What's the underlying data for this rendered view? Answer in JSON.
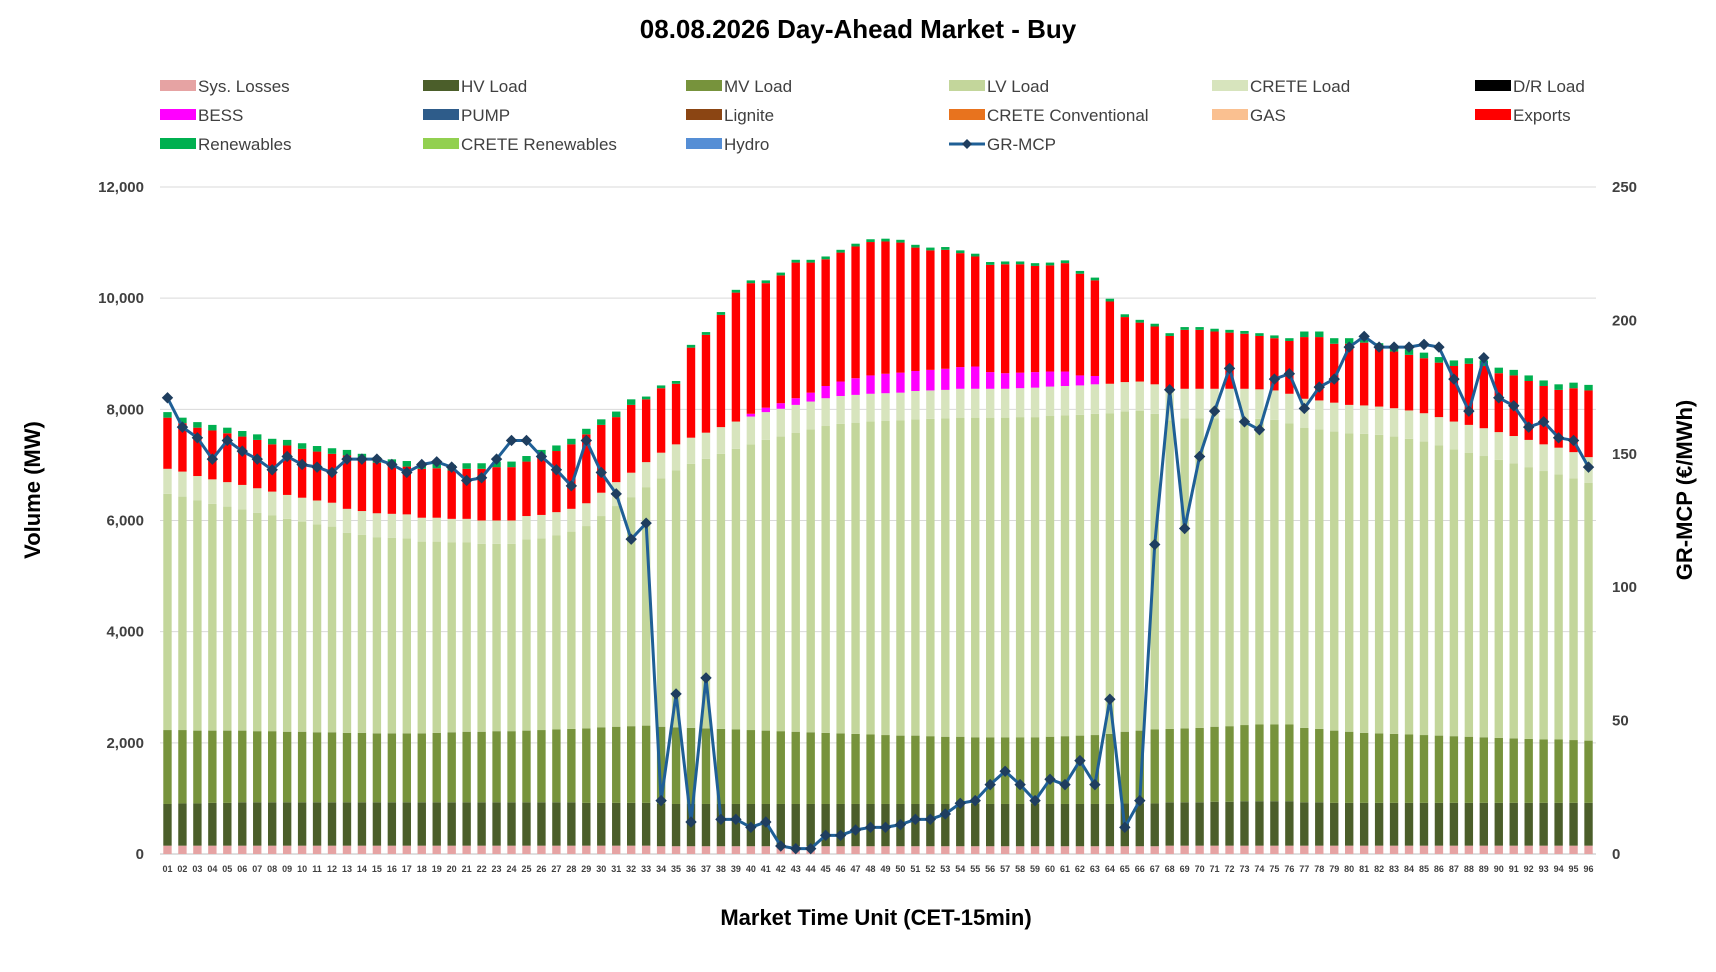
{
  "chart_data": {
    "type": "bar",
    "title": "08.08.2026  Day-Ahead Market - Buy",
    "xlabel": "Market Time Unit (CET-15min)",
    "ylabel": "Volume (MW)",
    "y2label": "GR-MCP (€/MWh)",
    "ylim": [
      0,
      12000
    ],
    "y2lim": [
      0,
      250
    ],
    "yticks": [
      "0",
      "2,000",
      "4,000",
      "6,000",
      "8,000",
      "10,000",
      "12,000"
    ],
    "y2ticks": [
      "0",
      "50",
      "100",
      "150",
      "200",
      "250"
    ],
    "grid": true,
    "legend_position": "top",
    "categories": [
      "01",
      "02",
      "03",
      "04",
      "05",
      "06",
      "07",
      "08",
      "09",
      "10",
      "11",
      "12",
      "13",
      "14",
      "15",
      "16",
      "17",
      "18",
      "19",
      "20",
      "21",
      "22",
      "23",
      "24",
      "25",
      "26",
      "27",
      "28",
      "29",
      "30",
      "31",
      "32",
      "33",
      "34",
      "35",
      "36",
      "37",
      "38",
      "39",
      "40",
      "41",
      "42",
      "43",
      "44",
      "45",
      "46",
      "47",
      "48",
      "49",
      "50",
      "51",
      "52",
      "53",
      "54",
      "55",
      "56",
      "57",
      "58",
      "59",
      "60",
      "61",
      "62",
      "63",
      "64",
      "65",
      "66",
      "67",
      "68",
      "69",
      "70",
      "71",
      "72",
      "73",
      "74",
      "75",
      "76",
      "77",
      "78",
      "79",
      "80",
      "81",
      "82",
      "83",
      "84",
      "85",
      "86",
      "87",
      "88",
      "89",
      "90",
      "91",
      "92",
      "93",
      "94",
      "95",
      "96"
    ],
    "legend": [
      {
        "name": "Sys. Losses",
        "color": "#e6a3a3",
        "kind": "box"
      },
      {
        "name": "HV Load",
        "color": "#4b5e2a",
        "kind": "box"
      },
      {
        "name": "MV Load",
        "color": "#77933c",
        "kind": "box"
      },
      {
        "name": "LV Load",
        "color": "#c3d69b",
        "kind": "box"
      },
      {
        "name": "CRETE Load",
        "color": "#d7e4bd",
        "kind": "box"
      },
      {
        "name": "D/R Load",
        "color": "#000000",
        "kind": "box"
      },
      {
        "name": "BESS",
        "color": "#ff00ff",
        "kind": "box"
      },
      {
        "name": "PUMP",
        "color": "#2e5c8a",
        "kind": "box"
      },
      {
        "name": "Lignite",
        "color": "#8b4513",
        "kind": "box"
      },
      {
        "name": "CRETE Conventional",
        "color": "#e8731e",
        "kind": "box"
      },
      {
        "name": "GAS",
        "color": "#fac090",
        "kind": "box"
      },
      {
        "name": "Exports",
        "color": "#ff0000",
        "kind": "box"
      },
      {
        "name": "Renewables",
        "color": "#00b050",
        "kind": "box"
      },
      {
        "name": "CRETE Renewables",
        "color": "#92d050",
        "kind": "box"
      },
      {
        "name": "Hydro",
        "color": "#558ed5",
        "kind": "box"
      },
      {
        "name": "GR-MCP",
        "color": "#1f5f96",
        "kind": "line"
      }
    ],
    "series": [
      {
        "name": "Sys. Losses",
        "color": "#e6a3a3",
        "values": [
          150,
          150,
          150,
          150,
          150,
          150,
          150,
          150,
          150,
          150,
          150,
          150,
          150,
          150,
          150,
          150,
          150,
          150,
          150,
          150,
          150,
          150,
          150,
          150,
          150,
          150,
          150,
          150,
          150,
          150,
          150,
          150,
          150,
          140,
          140,
          140,
          140,
          140,
          140,
          140,
          140,
          140,
          140,
          140,
          140,
          140,
          140,
          140,
          140,
          140,
          140,
          140,
          140,
          140,
          140,
          140,
          140,
          140,
          140,
          140,
          140,
          140,
          140,
          140,
          140,
          140,
          140,
          150,
          150,
          150,
          150,
          150,
          150,
          150,
          150,
          150,
          150,
          150,
          150,
          150,
          150,
          150,
          150,
          150,
          150,
          150,
          150,
          150,
          150,
          150,
          150,
          150,
          150,
          150,
          150,
          150
        ]
      },
      {
        "name": "HV Load",
        "color": "#4b5e2a",
        "values": [
          750,
          760,
          760,
          770,
          770,
          780,
          780,
          780,
          780,
          780,
          780,
          780,
          780,
          780,
          780,
          780,
          780,
          780,
          780,
          780,
          780,
          780,
          780,
          780,
          780,
          780,
          780,
          780,
          770,
          770,
          770,
          770,
          770,
          760,
          760,
          760,
          760,
          760,
          760,
          760,
          760,
          760,
          760,
          760,
          760,
          760,
          760,
          760,
          760,
          760,
          760,
          760,
          760,
          760,
          760,
          760,
          760,
          760,
          760,
          760,
          760,
          760,
          760,
          760,
          770,
          770,
          770,
          780,
          780,
          780,
          790,
          790,
          800,
          800,
          800,
          800,
          780,
          780,
          770,
          770,
          770,
          770,
          770,
          770,
          770,
          770,
          770,
          770,
          770,
          770,
          770,
          770,
          770,
          770,
          770,
          770
        ]
      },
      {
        "name": "MV Load",
        "color": "#77933c",
        "values": [
          1330,
          1320,
          1310,
          1300,
          1300,
          1290,
          1280,
          1280,
          1270,
          1270,
          1260,
          1260,
          1250,
          1250,
          1240,
          1240,
          1240,
          1240,
          1250,
          1260,
          1270,
          1270,
          1280,
          1280,
          1290,
          1300,
          1310,
          1320,
          1340,
          1360,
          1370,
          1380,
          1390,
          1390,
          1380,
          1370,
          1360,
          1350,
          1340,
          1330,
          1320,
          1310,
          1300,
          1290,
          1280,
          1270,
          1260,
          1250,
          1240,
          1230,
          1230,
          1220,
          1210,
          1210,
          1200,
          1200,
          1200,
          1200,
          1200,
          1210,
          1220,
          1230,
          1240,
          1260,
          1290,
          1310,
          1330,
          1320,
          1330,
          1340,
          1350,
          1360,
          1370,
          1380,
          1380,
          1380,
          1340,
          1320,
          1300,
          1280,
          1260,
          1250,
          1240,
          1230,
          1220,
          1210,
          1200,
          1190,
          1180,
          1170,
          1160,
          1150,
          1140,
          1140,
          1130,
          1120
        ]
      },
      {
        "name": "LV Load",
        "color": "#c3d69b",
        "values": [
          4250,
          4200,
          4140,
          4080,
          4030,
          3980,
          3930,
          3880,
          3830,
          3780,
          3740,
          3700,
          3600,
          3560,
          3530,
          3520,
          3510,
          3450,
          3440,
          3420,
          3410,
          3380,
          3370,
          3370,
          3440,
          3450,
          3490,
          3550,
          3640,
          3800,
          3970,
          4120,
          4290,
          4470,
          4620,
          4750,
          4850,
          4950,
          5050,
          5140,
          5230,
          5300,
          5380,
          5450,
          5520,
          5570,
          5600,
          5630,
          5650,
          5670,
          5690,
          5710,
          5730,
          5740,
          5750,
          5750,
          5750,
          5760,
          5760,
          5770,
          5770,
          5770,
          5780,
          5770,
          5760,
          5750,
          5680,
          5550,
          5580,
          5570,
          5550,
          5540,
          5520,
          5500,
          5480,
          5420,
          5400,
          5390,
          5380,
          5370,
          5380,
          5370,
          5350,
          5320,
          5280,
          5220,
          5160,
          5110,
          5060,
          5000,
          4950,
          4890,
          4830,
          4770,
          4710,
          4640
        ]
      },
      {
        "name": "CRETE Load",
        "color": "#d7e4bd",
        "values": [
          450,
          450,
          440,
          440,
          440,
          440,
          440,
          430,
          430,
          430,
          430,
          430,
          430,
          430,
          430,
          430,
          430,
          430,
          430,
          420,
          420,
          420,
          420,
          420,
          420,
          420,
          420,
          410,
          410,
          420,
          430,
          440,
          450,
          460,
          470,
          470,
          470,
          480,
          490,
          500,
          500,
          500,
          500,
          500,
          500,
          500,
          500,
          500,
          500,
          500,
          510,
          510,
          510,
          520,
          520,
          520,
          520,
          520,
          530,
          530,
          530,
          530,
          530,
          530,
          530,
          530,
          530,
          530,
          530,
          530,
          530,
          530,
          530,
          530,
          530,
          530,
          520,
          520,
          520,
          510,
          510,
          510,
          510,
          510,
          510,
          510,
          500,
          500,
          500,
          500,
          490,
          490,
          480,
          480,
          470,
          460
        ]
      },
      {
        "name": "BESS",
        "color": "#ff00ff",
        "values": [
          0,
          0,
          0,
          0,
          0,
          0,
          0,
          0,
          0,
          0,
          0,
          0,
          0,
          0,
          0,
          0,
          0,
          0,
          0,
          0,
          0,
          0,
          0,
          0,
          0,
          0,
          0,
          0,
          0,
          0,
          0,
          0,
          0,
          0,
          0,
          0,
          0,
          0,
          0,
          50,
          80,
          100,
          120,
          160,
          220,
          260,
          300,
          330,
          350,
          360,
          360,
          370,
          380,
          390,
          400,
          300,
          280,
          280,
          280,
          270,
          260,
          180,
          150,
          0,
          0,
          0,
          0,
          0,
          0,
          0,
          0,
          0,
          0,
          0,
          0,
          0,
          0,
          0,
          0,
          0,
          0,
          0,
          0,
          0,
          0,
          0,
          0,
          0,
          0,
          0,
          0,
          0,
          0,
          0,
          0,
          0
        ]
      },
      {
        "name": "Exports",
        "color": "#ff0000",
        "values": [
          920,
          870,
          870,
          880,
          880,
          870,
          870,
          850,
          890,
          880,
          880,
          880,
          960,
          930,
          910,
          880,
          860,
          880,
          890,
          870,
          900,
          930,
          960,
          960,
          980,
          1070,
          1100,
          1160,
          1240,
          1220,
          1170,
          1220,
          1130,
          1160,
          1090,
          1620,
          1760,
          2020,
          2320,
          2350,
          2240,
          2300,
          2440,
          2340,
          2280,
          2320,
          2370,
          2400,
          2380,
          2340,
          2220,
          2150,
          2140,
          2050,
          1980,
          1930,
          1960,
          1950,
          1910,
          1910,
          1950,
          1830,
          1720,
          1480,
          1170,
          1060,
          1040,
          990,
          1060,
          1060,
          1030,
          1010,
          990,
          960,
          940,
          950,
          1110,
          1140,
          1060,
          1100,
          1130,
          1040,
          1020,
          1000,
          990,
          980,
          1000,
          1100,
          1120,
          1060,
          1090,
          1060,
          1050,
          1040,
          1150,
          1200
        ]
      },
      {
        "name": "Renewables",
        "color": "#00b050",
        "values": [
          100,
          100,
          100,
          100,
          100,
          100,
          100,
          100,
          100,
          100,
          100,
          100,
          100,
          100,
          100,
          100,
          100,
          100,
          100,
          100,
          100,
          100,
          100,
          100,
          100,
          100,
          100,
          100,
          100,
          100,
          100,
          100,
          50,
          50,
          50,
          50,
          50,
          50,
          50,
          50,
          50,
          50,
          50,
          50,
          50,
          50,
          50,
          50,
          50,
          50,
          50,
          50,
          50,
          50,
          50,
          50,
          50,
          50,
          50,
          50,
          50,
          50,
          50,
          50,
          50,
          50,
          50,
          50,
          50,
          50,
          50,
          50,
          50,
          50,
          50,
          50,
          100,
          100,
          100,
          100,
          100,
          100,
          100,
          100,
          100,
          100,
          100,
          100,
          100,
          100,
          100,
          100,
          100,
          100,
          100,
          100
        ]
      },
      {
        "name": "GR-MCP",
        "color": "#1f5f96",
        "axis": "right",
        "values": [
          171,
          160,
          156,
          148,
          155,
          151,
          148,
          144,
          149,
          146,
          145,
          143,
          148,
          148,
          148,
          146,
          143,
          146,
          147,
          145,
          140,
          141,
          148,
          155,
          155,
          149,
          144,
          138,
          155,
          143,
          135,
          118,
          124,
          20,
          60,
          12,
          66,
          13,
          13,
          10,
          12,
          3,
          2,
          2,
          7,
          7,
          9,
          10,
          10,
          11,
          13,
          13,
          15,
          19,
          20,
          26,
          31,
          26,
          20,
          28,
          26,
          35,
          26,
          58,
          10,
          20,
          116,
          174,
          122,
          149,
          166,
          182,
          162,
          159,
          178,
          180,
          167,
          175,
          178,
          190,
          194,
          190,
          190,
          190,
          191,
          190,
          178,
          166,
          186,
          171,
          168,
          160,
          162,
          156,
          155,
          145
        ]
      }
    ]
  }
}
